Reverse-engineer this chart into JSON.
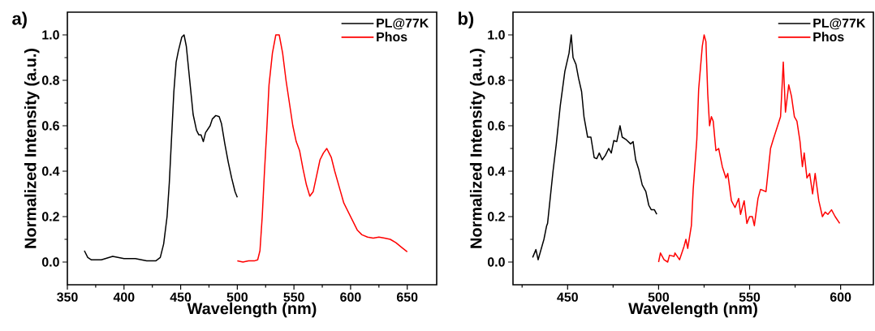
{
  "chart_data": [
    {
      "type": "line",
      "title": "a)",
      "xlabel": "Wavelength (nm)",
      "ylabel": "Normalized Intensity (a.u.)",
      "legend": "top right",
      "xlim": [
        350,
        676
      ],
      "ylim": [
        -0.1,
        1.1
      ],
      "xticks": [
        350,
        400,
        450,
        500,
        550,
        600,
        650,
        {
          "value": 375,
          "label": null
        },
        {
          "value": 425,
          "label": null
        },
        {
          "value": 475,
          "label": null
        },
        {
          "value": 525,
          "label": null
        },
        {
          "value": 575,
          "label": null
        },
        {
          "value": 625,
          "label": null
        }
      ],
      "yticks": [
        {
          "value": 0,
          "label": "0.0"
        },
        0.2,
        0.4,
        0.6,
        0.8,
        {
          "value": 1,
          "label": "1.0"
        },
        {
          "value": 0.1,
          "label": null
        },
        {
          "value": 0.3,
          "label": null
        },
        {
          "value": 0.5,
          "label": null
        },
        {
          "value": 0.7,
          "label": null
        },
        {
          "value": 0.9,
          "label": null
        }
      ],
      "series": [
        {
          "name": "PL@77K",
          "color": "#000000",
          "x": [
            365,
            368,
            371,
            380,
            390,
            400,
            410,
            420,
            428,
            432,
            435,
            438,
            440,
            442,
            444,
            446,
            448,
            451,
            453,
            455,
            458,
            461,
            464,
            466,
            468,
            470,
            472,
            476,
            478,
            481,
            484,
            486,
            489,
            492,
            495,
            498,
            500
          ],
          "values": [
            0.05,
            0.02,
            0.01,
            0.01,
            0.025,
            0.015,
            0.015,
            0.005,
            0.005,
            0.02,
            0.08,
            0.2,
            0.35,
            0.55,
            0.75,
            0.88,
            0.93,
            0.99,
            1.0,
            0.95,
            0.8,
            0.65,
            0.58,
            0.56,
            0.56,
            0.53,
            0.57,
            0.6,
            0.63,
            0.645,
            0.64,
            0.61,
            0.52,
            0.44,
            0.37,
            0.31,
            0.285
          ]
        },
        {
          "name": "Phos",
          "color": "#ff0000",
          "x": [
            500,
            505,
            510,
            515,
            518,
            520,
            522,
            524,
            526,
            528,
            531,
            534,
            537,
            540,
            543,
            546,
            549,
            552,
            555,
            558,
            561,
            564,
            567,
            570,
            573,
            576,
            579,
            581,
            583,
            586,
            590,
            594,
            598,
            602,
            606,
            610,
            615,
            620,
            625,
            630,
            635,
            640,
            645,
            650
          ],
          "values": [
            0.005,
            0.0,
            0.005,
            0.005,
            0.01,
            0.05,
            0.2,
            0.4,
            0.58,
            0.78,
            0.92,
            1.0,
            1.0,
            0.92,
            0.8,
            0.7,
            0.6,
            0.53,
            0.49,
            0.41,
            0.34,
            0.29,
            0.31,
            0.38,
            0.45,
            0.48,
            0.5,
            0.48,
            0.46,
            0.4,
            0.33,
            0.26,
            0.22,
            0.18,
            0.14,
            0.12,
            0.11,
            0.105,
            0.11,
            0.105,
            0.1,
            0.085,
            0.065,
            0.045
          ]
        }
      ]
    },
    {
      "type": "line",
      "title": "b)",
      "xlabel": "Wavelength (nm)",
      "ylabel": "Normalized Intensity (a.u.)",
      "legend": "top right",
      "xlim": [
        420,
        618
      ],
      "ylim": [
        -0.1,
        1.1
      ],
      "xticks": [
        450,
        500,
        550,
        600,
        {
          "value": 425,
          "label": null
        },
        {
          "value": 475,
          "label": null
        },
        {
          "value": 525,
          "label": null
        },
        {
          "value": 575,
          "label": null
        }
      ],
      "yticks": [
        {
          "value": 0,
          "label": "0.0"
        },
        0.2,
        0.4,
        0.6,
        0.8,
        {
          "value": 1,
          "label": "1.0"
        },
        {
          "value": 0.1,
          "label": null
        },
        {
          "value": 0.3,
          "label": null
        },
        {
          "value": 0.5,
          "label": null
        },
        {
          "value": 0.7,
          "label": null
        },
        {
          "value": 0.9,
          "label": null
        }
      ],
      "series": [
        {
          "name": "PL@77K",
          "color": "#000000",
          "x": [
            430.8,
            432.6,
            433.8,
            437,
            438.5,
            439,
            442,
            443.8,
            446,
            448.5,
            450.8,
            452,
            453,
            454.6,
            456,
            457.7,
            459,
            461,
            462.8,
            464.6,
            466,
            467.4,
            469,
            470.8,
            472.6,
            474,
            475.4,
            477,
            478.8,
            480,
            482,
            484.6,
            486,
            487.4,
            489,
            491,
            493,
            494.6,
            496,
            497.7,
            499
          ],
          "values": [
            0.02,
            0.055,
            0.01,
            0.1,
            0.16,
            0.17,
            0.4,
            0.52,
            0.69,
            0.84,
            0.92,
            1.0,
            0.9,
            0.87,
            0.81,
            0.75,
            0.64,
            0.55,
            0.55,
            0.46,
            0.455,
            0.48,
            0.45,
            0.47,
            0.5,
            0.48,
            0.535,
            0.53,
            0.6,
            0.55,
            0.54,
            0.52,
            0.53,
            0.45,
            0.41,
            0.34,
            0.31,
            0.25,
            0.23,
            0.23,
            0.21
          ]
        },
        {
          "name": "Phos",
          "color": "#ff0000",
          "x": [
            500,
            501,
            503,
            505,
            506,
            508.5,
            509,
            511.5,
            514,
            515,
            516,
            518,
            519,
            521,
            522,
            524,
            525,
            526,
            527,
            528,
            529,
            530,
            531.5,
            533,
            535,
            537,
            538,
            540,
            542,
            544,
            545,
            547,
            548.5,
            550,
            551.5,
            552.6,
            554.6,
            556,
            559,
            561.5,
            563,
            565.4,
            567,
            568.5,
            569.7,
            571.5,
            573,
            574.6,
            576,
            577.7,
            579,
            580,
            581.5,
            583,
            584.6,
            586,
            588,
            590,
            591.5,
            593,
            595,
            597,
            599.5
          ],
          "values": [
            0.0,
            0.04,
            0.01,
            0.0,
            0.03,
            0.025,
            0.04,
            0.01,
            0.07,
            0.1,
            0.06,
            0.16,
            0.32,
            0.54,
            0.76,
            0.95,
            1.0,
            0.97,
            0.74,
            0.6,
            0.64,
            0.62,
            0.49,
            0.5,
            0.42,
            0.37,
            0.39,
            0.27,
            0.24,
            0.28,
            0.21,
            0.27,
            0.17,
            0.2,
            0.2,
            0.16,
            0.28,
            0.32,
            0.31,
            0.5,
            0.54,
            0.6,
            0.64,
            0.88,
            0.66,
            0.78,
            0.73,
            0.64,
            0.62,
            0.53,
            0.42,
            0.48,
            0.37,
            0.39,
            0.3,
            0.39,
            0.27,
            0.2,
            0.22,
            0.21,
            0.23,
            0.2,
            0.17
          ]
        }
      ]
    }
  ]
}
